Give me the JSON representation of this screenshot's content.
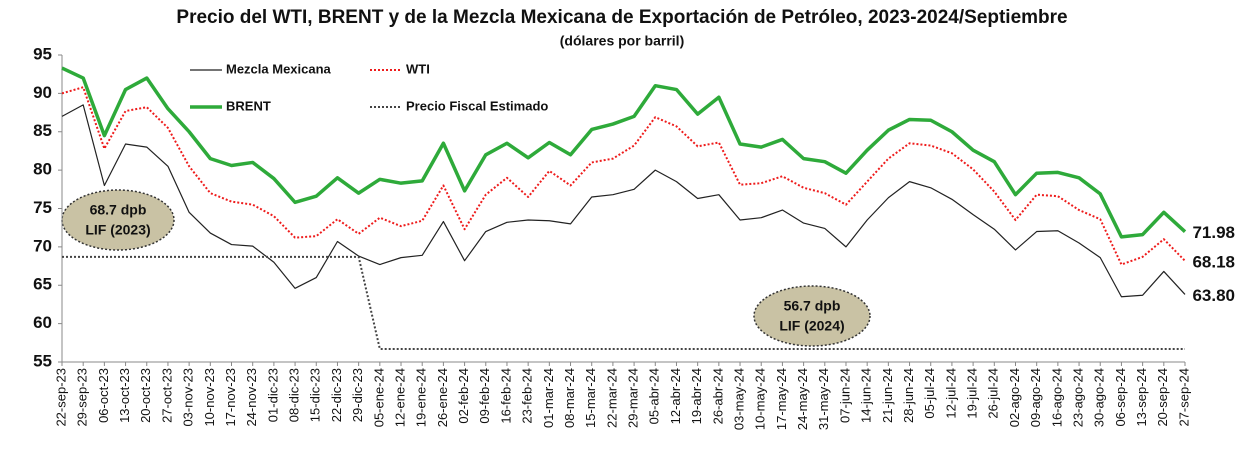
{
  "chart_data": {
    "type": "line",
    "title": "Precio del WTI, BRENT y de la Mezcla Mexicana de Exportación de Petróleo, 2023-2024/Septiembre",
    "subtitle": "(dólares por barril)",
    "categories": [
      "22-sep-23",
      "29-sep-23",
      "06-oct-23",
      "13-oct-23",
      "20-oct-23",
      "27-oct-23",
      "03-nov-23",
      "10-nov-23",
      "17-nov-23",
      "24-nov-23",
      "01-dic-23",
      "08-dic-23",
      "15-dic-23",
      "22-dic-23",
      "29-dic-23",
      "05-ene-24",
      "12-ene-24",
      "19-ene-24",
      "26-ene-24",
      "02-feb-24",
      "09-feb-24",
      "16-feb-24",
      "23-feb-24",
      "01-mar-24",
      "08-mar-24",
      "15-mar-24",
      "22-mar-24",
      "29-mar-24",
      "05-abr-24",
      "12-abr-24",
      "19-abr-24",
      "26-abr-24",
      "03-may-24",
      "10-may-24",
      "17-may-24",
      "24-may-24",
      "31-may-24",
      "07-jun-24",
      "14-jun-24",
      "21-jun-24",
      "28-jun-24",
      "05-jul-24",
      "12-jul-24",
      "19-jul-24",
      "26-jul-24",
      "02-ago-24",
      "09-ago-24",
      "16-ago-24",
      "23-ago-24",
      "30-ago-24",
      "06-sep-24",
      "13-sep-24",
      "20-sep-24",
      "27-sep-24"
    ],
    "series": [
      {
        "name": "Mezcla Mexicana",
        "color": "#222222",
        "style": "solid",
        "width": 1.2,
        "values": [
          87,
          88.5,
          78,
          83.4,
          83,
          80.5,
          74.5,
          71.8,
          70.3,
          70.1,
          68,
          64.6,
          66,
          70.7,
          68.8,
          67.7,
          68.6,
          68.9,
          73.3,
          68.2,
          72,
          73.2,
          73.5,
          73.4,
          73,
          76.5,
          76.8,
          77.5,
          80,
          78.5,
          76.3,
          76.8,
          73.5,
          73.8,
          74.8,
          73.1,
          72.4,
          70,
          73.5,
          76.4,
          78.5,
          77.7,
          76.2,
          74.2,
          72.3,
          69.6,
          72,
          72.1,
          70.5,
          68.6,
          63.5,
          63.7,
          66.8,
          63.8
        ],
        "value_labels": [
          null,
          null,
          null,
          null,
          null,
          null,
          null,
          null,
          null,
          null,
          null,
          null,
          null,
          null,
          null,
          null,
          null,
          null,
          null,
          null,
          null,
          null,
          null,
          null,
          null,
          null,
          null,
          null,
          null,
          null,
          null,
          null,
          null,
          null,
          null,
          null,
          null,
          null,
          null,
          null,
          null,
          null,
          null,
          null,
          null,
          null,
          null,
          null,
          null,
          null,
          null,
          null,
          null,
          "63.80"
        ]
      },
      {
        "name": "WTI",
        "color": "#ee1c1c",
        "style": "dotted",
        "width": 2,
        "values": [
          90,
          90.8,
          82.8,
          87.7,
          88.2,
          85.5,
          80.5,
          77,
          75.9,
          75.5,
          74,
          71.2,
          71.4,
          73.6,
          71.7,
          73.8,
          72.7,
          73.4,
          78,
          72.3,
          76.8,
          79,
          76.5,
          79.9,
          78,
          81,
          81.5,
          83.2,
          86.9,
          85.7,
          83.1,
          83.6,
          78.1,
          78.3,
          79.2,
          77.7,
          77,
          75.5,
          78.5,
          81.5,
          83.5,
          83.2,
          82.2,
          80.1,
          77.2,
          73.5,
          76.8,
          76.6,
          74.8,
          73.6,
          67.7,
          68.7,
          71,
          68.18
        ]
      },
      {
        "name": "BRENT",
        "color": "#2eaa3a",
        "style": "solid",
        "width": 3.5,
        "values": [
          93.3,
          92,
          84.5,
          90.5,
          92,
          88,
          85,
          81.5,
          80.6,
          81,
          78.9,
          75.8,
          76.6,
          79,
          77,
          78.8,
          78.3,
          78.6,
          83.5,
          77.3,
          82,
          83.5,
          81.6,
          83.6,
          82,
          85.3,
          86,
          87,
          91,
          90.5,
          87.3,
          89.5,
          83.4,
          83,
          84,
          81.5,
          81.1,
          79.6,
          82.6,
          85.2,
          86.6,
          86.5,
          85,
          82.6,
          81.1,
          76.8,
          79.6,
          79.7,
          79,
          76.9,
          71.3,
          71.6,
          74.5,
          71.98
        ]
      },
      {
        "name": "Precio Fiscal Estimado",
        "color": "#444444",
        "style": "dotted",
        "width": 2,
        "values": [
          68.7,
          68.7,
          68.7,
          68.7,
          68.7,
          68.7,
          68.7,
          68.7,
          68.7,
          68.7,
          68.7,
          68.7,
          68.7,
          68.7,
          68.7,
          56.7,
          56.7,
          56.7,
          56.7,
          56.7,
          56.7,
          56.7,
          56.7,
          56.7,
          56.7,
          56.7,
          56.7,
          56.7,
          56.7,
          56.7,
          56.7,
          56.7,
          56.7,
          56.7,
          56.7,
          56.7,
          56.7,
          56.7,
          56.7,
          56.7,
          56.7,
          56.7,
          56.7,
          56.7,
          56.7,
          56.7,
          56.7,
          56.7,
          56.7,
          56.7,
          56.7,
          56.7,
          56.7,
          56.7
        ]
      }
    ],
    "ylim": [
      55,
      95
    ],
    "yticks": [
      55,
      60,
      65,
      70,
      75,
      80,
      85,
      90,
      95
    ],
    "annotations": [
      [
        "68.7 dpb",
        "LIF (2023)"
      ],
      [
        "56.7 dpb",
        "LIF (2024)"
      ]
    ]
  }
}
